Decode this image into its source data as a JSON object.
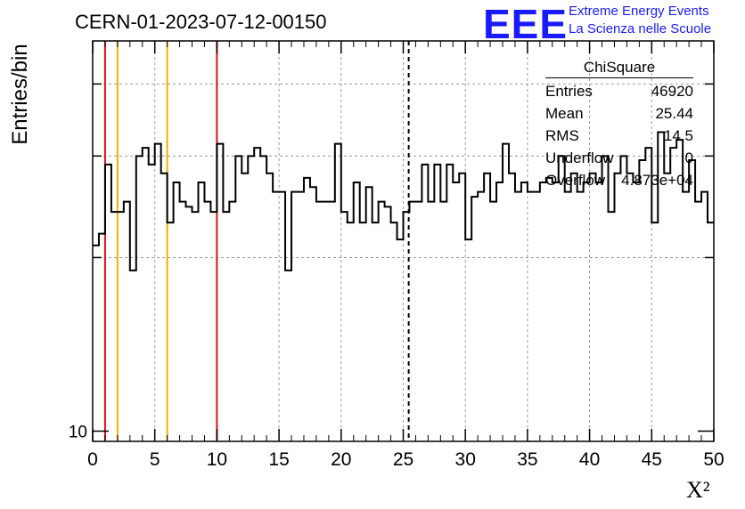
{
  "header": {
    "title": "CERN-01-2023-07-12-00150"
  },
  "logo": {
    "mark": "EEE",
    "line1": "Extreme Energy Events",
    "line2": "La Scienza nelle Scuole"
  },
  "colors": {
    "red_lines": "#dd1111",
    "orange_lines": "#f0b000",
    "logo": "#1a1aff",
    "grid": "#999999"
  },
  "stats": {
    "title": "ChiSquare",
    "rows": [
      {
        "label": "Entries",
        "value": "46920"
      },
      {
        "label": "Mean",
        "value": "25.44"
      },
      {
        "label": "RMS",
        "value": "14.5"
      },
      {
        "label": "Underflow",
        "value": "0"
      },
      {
        "label": "Overflow",
        "value": "4.873e+04"
      }
    ]
  },
  "chart_data": {
    "type": "histogram",
    "ylabel": "Entries/bin",
    "xlabel": "X²",
    "xlim": [
      0,
      50
    ],
    "ylim": [
      9.6,
      47.5
    ],
    "yscale": "log",
    "xticks": [
      "0",
      "5",
      "10",
      "15",
      "20",
      "25",
      "30",
      "35",
      "40",
      "45",
      "50"
    ],
    "yticks": [
      "10"
    ],
    "grid": true,
    "bin_width": 0.5,
    "values": [
      21.0,
      22.0,
      29.0,
      24.0,
      24.0,
      25.0,
      19.0,
      30.0,
      31.0,
      29.0,
      31.5,
      28.0,
      23.0,
      27.0,
      25.0,
      24.5,
      24.0,
      27.0,
      25.0,
      24.0,
      31.5,
      24.0,
      25.0,
      30.0,
      28.0,
      30.0,
      31.0,
      30.0,
      28.0,
      26.0,
      26.0,
      19.0,
      26.0,
      26.0,
      27.5,
      26.5,
      25.0,
      25.0,
      25.0,
      31.5,
      24.0,
      23.0,
      27.0,
      23.0,
      26.5,
      23.0,
      25.0,
      24.5,
      23.0,
      21.5,
      24.0,
      25.0,
      25.0,
      29.0,
      25.0,
      29.0,
      25.0,
      29.0,
      27.0,
      28.0,
      21.5,
      25.5,
      26.0,
      28.0,
      25.0,
      27.0,
      31.5,
      28.0,
      26.0,
      27.0,
      26.0,
      26.0,
      27.0,
      27.5,
      27.0,
      30.0,
      26.0,
      28.0,
      26.0,
      27.0,
      28.0,
      27.0,
      30.0,
      24.0,
      28.0,
      30.0,
      28.0,
      27.0,
      29.5,
      31.0,
      23.0,
      33.0,
      28.0,
      31.0,
      32.0,
      26.0,
      29.5,
      25.0,
      26.0,
      23.0
    ],
    "vertical_markers": [
      {
        "x": 1,
        "color": "red",
        "style": "solid"
      },
      {
        "x": 2,
        "color": "orange",
        "style": "solid"
      },
      {
        "x": 6,
        "color": "orange",
        "style": "solid"
      },
      {
        "x": 10,
        "color": "red",
        "style": "solid"
      },
      {
        "x": 25.44,
        "color": "black",
        "style": "dashed"
      }
    ]
  }
}
